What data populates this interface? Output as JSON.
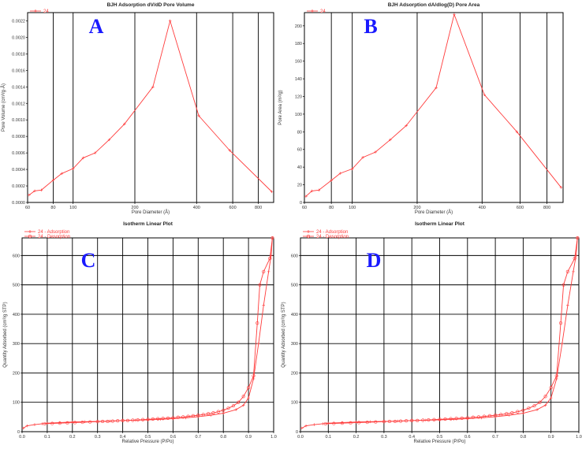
{
  "colors": {
    "series": "#ff3b3b",
    "panel_letter": "#1a1aff",
    "grid": "#000000"
  },
  "chart_data": [
    {
      "id": "A",
      "type": "line",
      "panel_letter": "A",
      "title": "BJH Adsorption dV/dD Pore Volume",
      "xlabel": "Pore Diameter (Å)",
      "ylabel": "Pore Volume (cm³/g·Å)",
      "xscale": "log",
      "xlim": [
        60,
        950
      ],
      "ylim": [
        0,
        0.0023
      ],
      "xticks": [
        60,
        80,
        100,
        200,
        400,
        600,
        800
      ],
      "yticks": [
        0,
        0.0002,
        0.0004,
        0.0006,
        0.0008,
        0.001,
        0.0012,
        0.0014,
        0.0016,
        0.0018,
        0.002,
        0.0022
      ],
      "ytick_labels": [
        "0.0000",
        "0.0002",
        "0.0004",
        "0.0006",
        "0.0008",
        "0.0010",
        "0.0012",
        "0.0014",
        "0.0016",
        "0.0018",
        "0.0020",
        "0.0022"
      ],
      "grid": true,
      "legend": {
        "position": "top-left",
        "entries": [
          "24"
        ]
      },
      "series": [
        {
          "name": "24",
          "marker": "plus",
          "x": [
            61,
            65,
            70,
            80,
            88,
            100,
            112,
            128,
            150,
            178,
            245,
            297,
            410,
            580,
            930
          ],
          "y": [
            9e-05,
            0.00014,
            0.00015,
            0.00027,
            0.00035,
            0.00041,
            0.00054,
            0.0006,
            0.00076,
            0.00095,
            0.0014,
            0.0022,
            0.00105,
            0.00063,
            0.00013
          ]
        }
      ]
    },
    {
      "id": "B",
      "type": "line",
      "panel_letter": "B",
      "title": "BJH Adsorption dA/dlog(D) Pore Area",
      "xlabel": "Pore Diameter (Å)",
      "ylabel": "Pore Area (m²/g)",
      "xscale": "log",
      "xlim": [
        60,
        950
      ],
      "ylim": [
        0,
        215
      ],
      "xticks": [
        60,
        80,
        100,
        200,
        400,
        600,
        800
      ],
      "yticks": [
        0,
        20,
        40,
        60,
        80,
        100,
        120,
        140,
        160,
        180,
        200
      ],
      "ytick_labels": [
        "0",
        "20",
        "40",
        "60",
        "80",
        "100",
        "120",
        "140",
        "160",
        "180",
        "200"
      ],
      "grid": true,
      "legend": {
        "position": "top-left",
        "entries": [
          "24"
        ]
      },
      "series": [
        {
          "name": "24",
          "marker": "plus",
          "x": [
            61,
            65,
            70,
            80,
            88,
            100,
            112,
            128,
            150,
            178,
            245,
            297,
            410,
            580,
            930
          ],
          "y": [
            7,
            13,
            14,
            25,
            33,
            38,
            51,
            57,
            71,
            87,
            130,
            213,
            122,
            80,
            17
          ]
        }
      ]
    },
    {
      "id": "C",
      "type": "line",
      "panel_letter": "C",
      "title": "Isotherm Linear Plot",
      "xlabel": "Relative Pressure (P/Po)",
      "ylabel": "Quantity Adsorbed (cm³/g STP)",
      "xscale": "linear",
      "xlim": [
        0,
        1.0
      ],
      "ylim": [
        0,
        660
      ],
      "xticks": [
        0,
        0.1,
        0.2,
        0.3,
        0.4,
        0.5,
        0.6,
        0.7,
        0.8,
        0.9,
        1.0
      ],
      "xtick_labels": [
        "0.0",
        "0.1",
        "0.2",
        "0.3",
        "0.4",
        "0.5",
        "0.6",
        "0.7",
        "0.8",
        "0.9",
        "1.0"
      ],
      "yticks": [
        0,
        100,
        200,
        300,
        400,
        500,
        600
      ],
      "ytick_labels": [
        "0",
        "100",
        "200",
        "300",
        "400",
        "500",
        "600"
      ],
      "grid": true,
      "legend": {
        "position": "top-left",
        "entries": [
          "24 - Adsorption",
          "24 - Desorption"
        ]
      },
      "series": [
        {
          "name": "24 - Adsorption",
          "marker": "plus",
          "x": [
            0.005,
            0.02,
            0.05,
            0.08,
            0.1,
            0.15,
            0.2,
            0.25,
            0.3,
            0.35,
            0.4,
            0.45,
            0.5,
            0.55,
            0.6,
            0.65,
            0.7,
            0.75,
            0.8,
            0.85,
            0.88,
            0.9,
            0.92,
            0.94,
            0.96,
            0.98,
            0.99,
            0.995
          ],
          "y": [
            12,
            20,
            24,
            27,
            29,
            31,
            33,
            34,
            35,
            36,
            38,
            39,
            40,
            42,
            44,
            47,
            51,
            56,
            63,
            75,
            90,
            115,
            180,
            300,
            430,
            545,
            600,
            660
          ]
        },
        {
          "name": "24 - Desorption",
          "marker": "circle",
          "x": [
            0.995,
            0.985,
            0.96,
            0.945,
            0.935,
            0.92,
            0.9,
            0.88,
            0.86,
            0.84,
            0.82,
            0.8,
            0.78,
            0.76,
            0.74,
            0.72,
            0.7,
            0.68,
            0.66,
            0.64,
            0.62,
            0.6,
            0.58,
            0.56,
            0.54,
            0.52,
            0.5,
            0.48,
            0.46,
            0.44,
            0.42,
            0.4,
            0.38,
            0.36,
            0.34,
            0.32,
            0.3,
            0.27,
            0.24,
            0.21,
            0.18,
            0.15,
            0.12,
            0.09
          ],
          "y": [
            660,
            590,
            545,
            500,
            370,
            190,
            150,
            120,
            100,
            88,
            80,
            73,
            68,
            64,
            61,
            58,
            56,
            54,
            52,
            50,
            49,
            47,
            46,
            45,
            44,
            43,
            42,
            41,
            40,
            39,
            38,
            38,
            37,
            36,
            35,
            35,
            34,
            33,
            32,
            31,
            30,
            29,
            28,
            27
          ]
        }
      ]
    },
    {
      "id": "D",
      "type": "line",
      "panel_letter": "D",
      "title": "Isotherm Linear Plot",
      "xlabel": "Relative Pressure (P/Po)",
      "ylabel": "Quantity Adsorbed (cm³/g STP)",
      "xscale": "linear",
      "xlim": [
        0,
        1.0
      ],
      "ylim": [
        0,
        660
      ],
      "xticks": [
        0,
        0.1,
        0.2,
        0.3,
        0.4,
        0.5,
        0.6,
        0.7,
        0.8,
        0.9,
        1.0
      ],
      "xtick_labels": [
        "0.0",
        "0.1",
        "0.2",
        "0.3",
        "0.4",
        "0.5",
        "0.6",
        "0.7",
        "0.8",
        "0.9",
        "1.0"
      ],
      "yticks": [
        0,
        100,
        200,
        300,
        400,
        500,
        600
      ],
      "ytick_labels": [
        "0",
        "100",
        "200",
        "300",
        "400",
        "500",
        "600"
      ],
      "grid": true,
      "legend": {
        "position": "top-left",
        "entries": [
          "24 - Adsorption",
          "24 - Desorption"
        ]
      },
      "series": [
        {
          "name": "24 - Adsorption",
          "marker": "plus",
          "x": [
            0.005,
            0.02,
            0.05,
            0.08,
            0.1,
            0.15,
            0.2,
            0.25,
            0.3,
            0.35,
            0.4,
            0.45,
            0.5,
            0.55,
            0.6,
            0.65,
            0.7,
            0.75,
            0.8,
            0.85,
            0.88,
            0.9,
            0.92,
            0.94,
            0.96,
            0.98,
            0.99,
            0.995
          ],
          "y": [
            12,
            20,
            24,
            27,
            29,
            31,
            33,
            34,
            35,
            36,
            38,
            39,
            40,
            42,
            44,
            47,
            51,
            56,
            63,
            75,
            90,
            115,
            180,
            300,
            430,
            545,
            600,
            660
          ]
        },
        {
          "name": "24 - Desorption",
          "marker": "circle",
          "x": [
            0.995,
            0.985,
            0.96,
            0.945,
            0.935,
            0.92,
            0.9,
            0.88,
            0.86,
            0.84,
            0.82,
            0.8,
            0.78,
            0.76,
            0.74,
            0.72,
            0.7,
            0.68,
            0.66,
            0.64,
            0.62,
            0.6,
            0.58,
            0.56,
            0.54,
            0.52,
            0.5,
            0.48,
            0.46,
            0.44,
            0.42,
            0.4,
            0.38,
            0.36,
            0.34,
            0.32,
            0.3,
            0.27,
            0.24,
            0.21,
            0.18,
            0.15,
            0.12,
            0.09
          ],
          "y": [
            660,
            590,
            545,
            500,
            370,
            190,
            150,
            120,
            100,
            88,
            80,
            73,
            68,
            64,
            61,
            58,
            56,
            54,
            52,
            50,
            49,
            47,
            46,
            45,
            44,
            43,
            42,
            41,
            40,
            39,
            38,
            38,
            37,
            36,
            35,
            35,
            34,
            33,
            32,
            31,
            30,
            29,
            28,
            27
          ]
        }
      ]
    }
  ]
}
